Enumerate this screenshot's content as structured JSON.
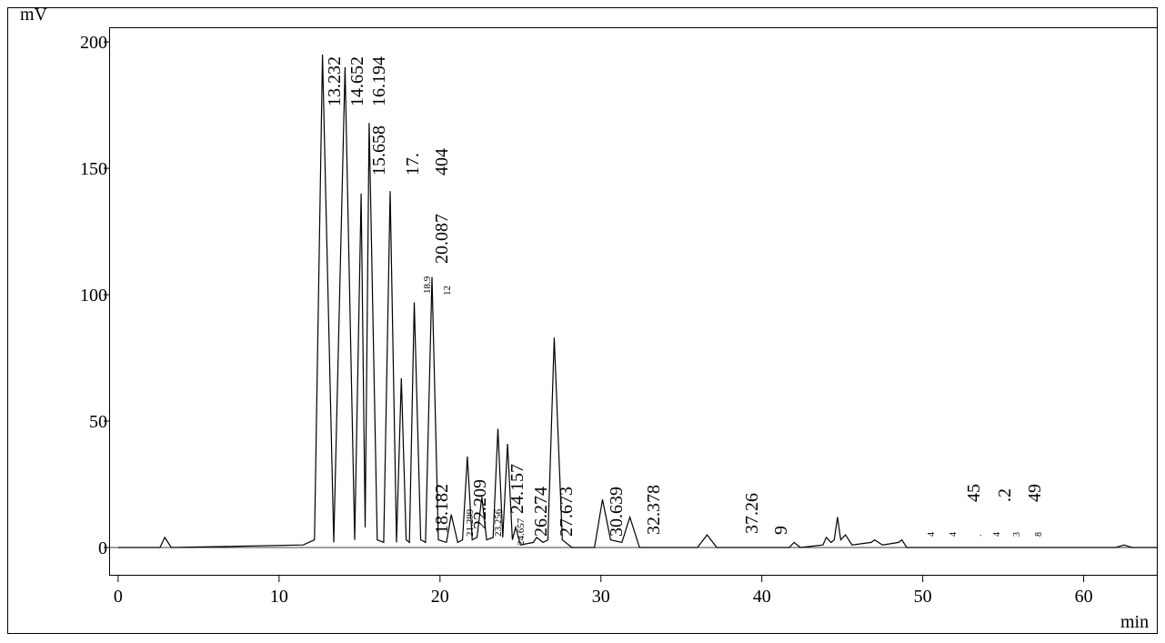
{
  "chart_data": {
    "type": "line",
    "y_label": "mV",
    "x_label": "min",
    "xlim": [
      -0.56,
      64.6
    ],
    "ylim": [
      -10.8,
      205.8
    ],
    "xticks": [
      0,
      10,
      20,
      30,
      40,
      50,
      60
    ],
    "yticks": [
      0,
      50,
      100,
      150,
      200
    ],
    "color": "#000000",
    "x": [
      0,
      2.6,
      2.9,
      3.3,
      11.5,
      12.2,
      12.7,
      13.4,
      14.1,
      14.7,
      15.1,
      15.35,
      15.6,
      16.1,
      16.5,
      16.9,
      17.3,
      17.6,
      17.9,
      18.1,
      18.4,
      18.8,
      19.1,
      19.5,
      19.9,
      20.4,
      20.7,
      21.1,
      21.4,
      21.7,
      22.0,
      22.3,
      22.6,
      22.9,
      23.3,
      23.6,
      23.9,
      24.2,
      24.5,
      24.7,
      25.0,
      25.8,
      26.0,
      26.4,
      26.7,
      27.1,
      27.6,
      28.2,
      29.6,
      30.1,
      30.6,
      31.3,
      31.8,
      32.4,
      36.0,
      36.6,
      37.2,
      41.7,
      42.0,
      42.4,
      43.8,
      44.0,
      44.3,
      44.5,
      44.7,
      44.9,
      45.2,
      45.6,
      46.8,
      47.0,
      47.5,
      48.5,
      48.7,
      49.0,
      62.0,
      62.5,
      63.0,
      64.6
    ],
    "values": [
      0,
      0,
      4,
      0,
      1,
      3,
      195,
      2,
      190,
      3,
      140,
      8,
      168,
      3,
      2,
      141,
      2,
      67,
      3,
      2,
      97,
      3,
      2,
      107,
      3,
      2,
      13,
      2,
      3,
      36,
      3,
      4,
      20,
      3,
      4,
      47,
      4,
      41,
      3,
      8,
      1,
      2,
      4,
      2,
      3,
      83,
      3,
      0,
      0,
      19,
      3,
      2,
      12,
      0,
      0,
      5,
      0,
      0,
      2,
      0,
      1,
      4,
      2,
      3,
      12,
      3,
      5,
      1,
      2,
      3,
      1,
      2,
      3,
      0,
      0,
      1,
      0,
      0
    ],
    "annotations": [
      "13.232",
      "14.652",
      "16.194",
      "15.658",
      "17.",
      "404",
      "20.087",
      "18.9",
      "12",
      "18.182",
      "21.299",
      "22.209",
      "23.256",
      "24.657",
      "24.157",
      "26.274",
      "27.673",
      "30.639",
      "32.378",
      "37.26",
      "9",
      "45",
      ".2",
      "49",
      "4",
      "4",
      ".",
      "4",
      "3",
      "8"
    ]
  }
}
